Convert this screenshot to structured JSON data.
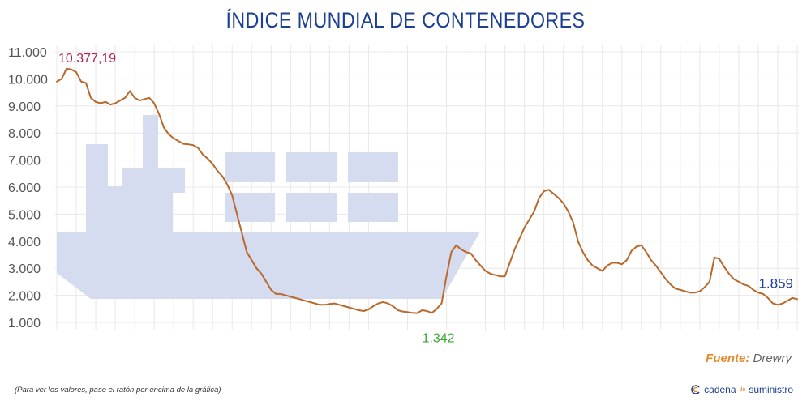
{
  "title": "ÍNDICE MUNDIAL DE CONTENEDORES",
  "source": {
    "label": "Fuente:",
    "value": "Drewry"
  },
  "footnote": "(Para ver los valores, pase el ratón por encima de la gráfica)",
  "brand": {
    "name_a": "cadena",
    "name_b": "de",
    "name_c": "suministro"
  },
  "colors": {
    "line": "#b8682a",
    "title": "#1c3f94",
    "grid": "#e8e8e8",
    "ship": "#d5dcef",
    "peak_label": "#b5224f",
    "min_label": "#3aa634",
    "last_label": "#1c3f94"
  },
  "chart_data": {
    "type": "line",
    "title": "ÍNDICE MUNDIAL DE CONTENEDORES",
    "xlabel": "",
    "ylabel": "",
    "ylim": [
      1000,
      11000
    ],
    "yticks": [
      1000,
      2000,
      3000,
      4000,
      5000,
      6000,
      7000,
      8000,
      9000,
      10000,
      11000
    ],
    "ytick_labels": [
      "1.000",
      "2.000",
      "3.000",
      "4.000",
      "5.000",
      "6.000",
      "7.000",
      "8.000",
      "9.000",
      "10.000",
      "11.000"
    ],
    "grid": true,
    "series": [
      {
        "values": [
          9900,
          10000,
          10377.19,
          10350,
          10250,
          9900,
          9850,
          9300,
          9150,
          9100,
          9150,
          9050,
          9100,
          9200,
          9300,
          9550,
          9300,
          9200,
          9250,
          9300,
          9100,
          8700,
          8200,
          7950,
          7800,
          7700,
          7600,
          7580,
          7550,
          7450,
          7200,
          7050,
          6850,
          6600,
          6400,
          6100,
          5700,
          5000,
          4300,
          3600,
          3300,
          3000,
          2800,
          2500,
          2200,
          2050,
          2050,
          2000,
          1950,
          1900,
          1850,
          1800,
          1750,
          1700,
          1650,
          1650,
          1680,
          1700,
          1650,
          1600,
          1550,
          1500,
          1450,
          1420,
          1480,
          1600,
          1700,
          1750,
          1700,
          1600,
          1450,
          1400,
          1380,
          1350,
          1342,
          1450,
          1420,
          1350,
          1500,
          1700,
          2700,
          3600,
          3850,
          3700,
          3600,
          3550,
          3300,
          3100,
          2900,
          2800,
          2750,
          2700,
          2700,
          3200,
          3700,
          4100,
          4500,
          4800,
          5100,
          5600,
          5850,
          5900,
          5750,
          5600,
          5400,
          5100,
          4700,
          4000,
          3600,
          3300,
          3100,
          3000,
          2900,
          3100,
          3200,
          3200,
          3150,
          3300,
          3650,
          3800,
          3850,
          3600,
          3300,
          3100,
          2850,
          2600,
          2400,
          2250,
          2200,
          2150,
          2100,
          2100,
          2150,
          2300,
          2500,
          3400,
          3350,
          3050,
          2800,
          2600,
          2500,
          2400,
          2350,
          2200,
          2100,
          2050,
          1900,
          1700,
          1650,
          1700,
          1800,
          1900,
          1859
        ]
      }
    ],
    "annotations": [
      {
        "text": "10.377,19",
        "point": "max"
      },
      {
        "text": "1.342",
        "point": "min"
      },
      {
        "text": "1.859",
        "point": "last"
      }
    ]
  }
}
